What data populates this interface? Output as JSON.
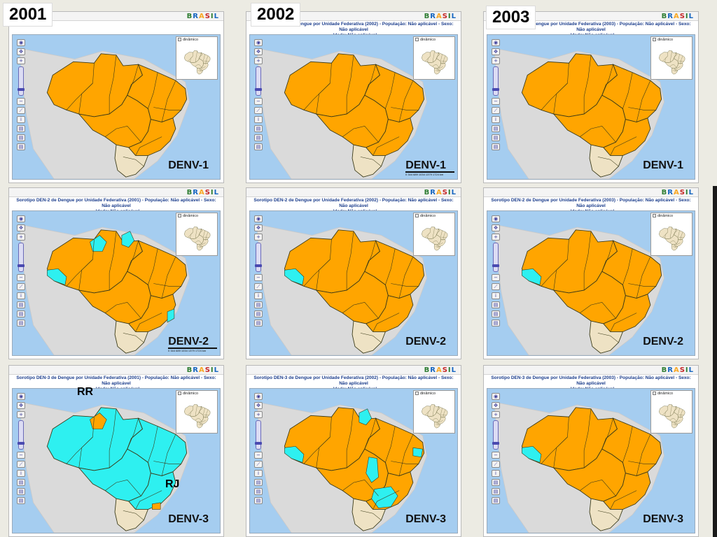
{
  "years": [
    "2001",
    "2002",
    "2003"
  ],
  "colors": {
    "ocean": "#a5cdf0",
    "land": "#dadada",
    "orange": "#ffa500",
    "cyan": "#2ef0f0",
    "south": "#eee2c4",
    "border": "#3a3a18"
  },
  "logo_text": "BRASIL",
  "minimap_label": "dinâmico",
  "scale_text": "0   344   689   1034  1379  1724 km",
  "panels": [
    {
      "row": 0,
      "col": 0,
      "year": "2001",
      "serotype": "DENV-1",
      "title": "",
      "show_scale": false,
      "regions": {
        "N": "orange",
        "NE": "orange",
        "CW": "orange",
        "SE": "orange",
        "S": "south"
      },
      "highlights": []
    },
    {
      "row": 0,
      "col": 1,
      "year": "2002",
      "serotype": "DENV-1",
      "title": "Sorotipo DEN-1 de Dengue por Unidade Federativa (2002) - População: Não aplicável - Sexo: Não aplicável\n- Idade: Não aplicável",
      "show_scale": true,
      "regions": {
        "N": "orange",
        "NE": "orange",
        "CW": "orange",
        "SE": "orange",
        "S": "south"
      },
      "highlights": []
    },
    {
      "row": 0,
      "col": 2,
      "year": "2003",
      "serotype": "DENV-1",
      "title": "Sorotipo DEN-1 de Dengue por Unidade Federativa (2003) - População: Não aplicável - Sexo: Não aplicável\n- Idade: Não aplicável",
      "show_scale": false,
      "regions": {
        "N": "orange",
        "NE": "orange",
        "CW": "orange",
        "SE": "orange",
        "S": "south"
      },
      "highlights": []
    },
    {
      "row": 1,
      "col": 0,
      "year": "2001",
      "serotype": "DENV-2",
      "title": "Sorotipo DEN-2 de Dengue por Unidade Federativa (2001) - População: Não aplicável - Sexo: Não aplicável\n- Idade: Não aplicável",
      "show_scale": true,
      "regions": {
        "N": "orange",
        "NE": "orange",
        "CW": "orange",
        "SE": "orange",
        "S": "south"
      },
      "highlights": [
        "RR",
        "AP",
        "AC",
        "ES"
      ]
    },
    {
      "row": 1,
      "col": 1,
      "year": "2002",
      "serotype": "DENV-2",
      "title": "Sorotipo DEN-2 de Dengue por Unidade Federativa (2002) - População: Não aplicável - Sexo: Não aplicável\n- Idade: Não aplicável",
      "show_scale": false,
      "regions": {
        "N": "orange",
        "NE": "orange",
        "CW": "orange",
        "SE": "orange",
        "S": "south"
      },
      "highlights": [
        "AC"
      ]
    },
    {
      "row": 1,
      "col": 2,
      "year": "2003",
      "serotype": "DENV-2",
      "title": "Sorotipo DEN-2 de Dengue por Unidade Federativa (2003) - População: Não aplicável - Sexo: Não aplicável\n- Idade: Não aplicável",
      "show_scale": false,
      "regions": {
        "N": "orange",
        "NE": "orange",
        "CW": "orange",
        "SE": "orange",
        "S": "south"
      },
      "highlights": [
        "AC"
      ]
    },
    {
      "row": 2,
      "col": 0,
      "year": "2001",
      "serotype": "DENV-3",
      "title": "Sorotipo DEN-3 de Dengue por Unidade Federativa (2001) - População: Não aplicável - Sexo: Não aplicável\n- Idade: Não aplicável",
      "show_scale": false,
      "regions": {
        "N": "cyan",
        "NE": "cyan",
        "CW": "cyan",
        "SE": "cyan",
        "S": "south"
      },
      "highlights_orange": [
        "RR",
        "RJ"
      ],
      "highlights": []
    },
    {
      "row": 2,
      "col": 1,
      "year": "2002",
      "serotype": "DENV-3",
      "title": "Sorotipo DEN-3 de Dengue por Unidade Federativa (2002) - População: Não aplicável - Sexo: Não aplicável\n- Idade: Não aplicável",
      "show_scale": false,
      "regions": {
        "N": "orange",
        "NE": "orange",
        "CW": "orange",
        "SE": "orange",
        "S": "south"
      },
      "highlights": [
        "AP",
        "AC",
        "TO",
        "MG",
        "PB"
      ]
    },
    {
      "row": 2,
      "col": 2,
      "year": "2003",
      "serotype": "DENV-3",
      "title": "Sorotipo DEN-3 de Dengue por Unidade Federativa (2003) - População: Não aplicável - Sexo: Não aplicável\n- Idade: Não aplicável",
      "show_scale": false,
      "regions": {
        "N": "orange",
        "NE": "orange",
        "CW": "orange",
        "SE": "orange",
        "S": "south"
      },
      "highlights": [
        "AC"
      ]
    }
  ],
  "annotations": {
    "rr": "RR",
    "rj": "RJ"
  }
}
